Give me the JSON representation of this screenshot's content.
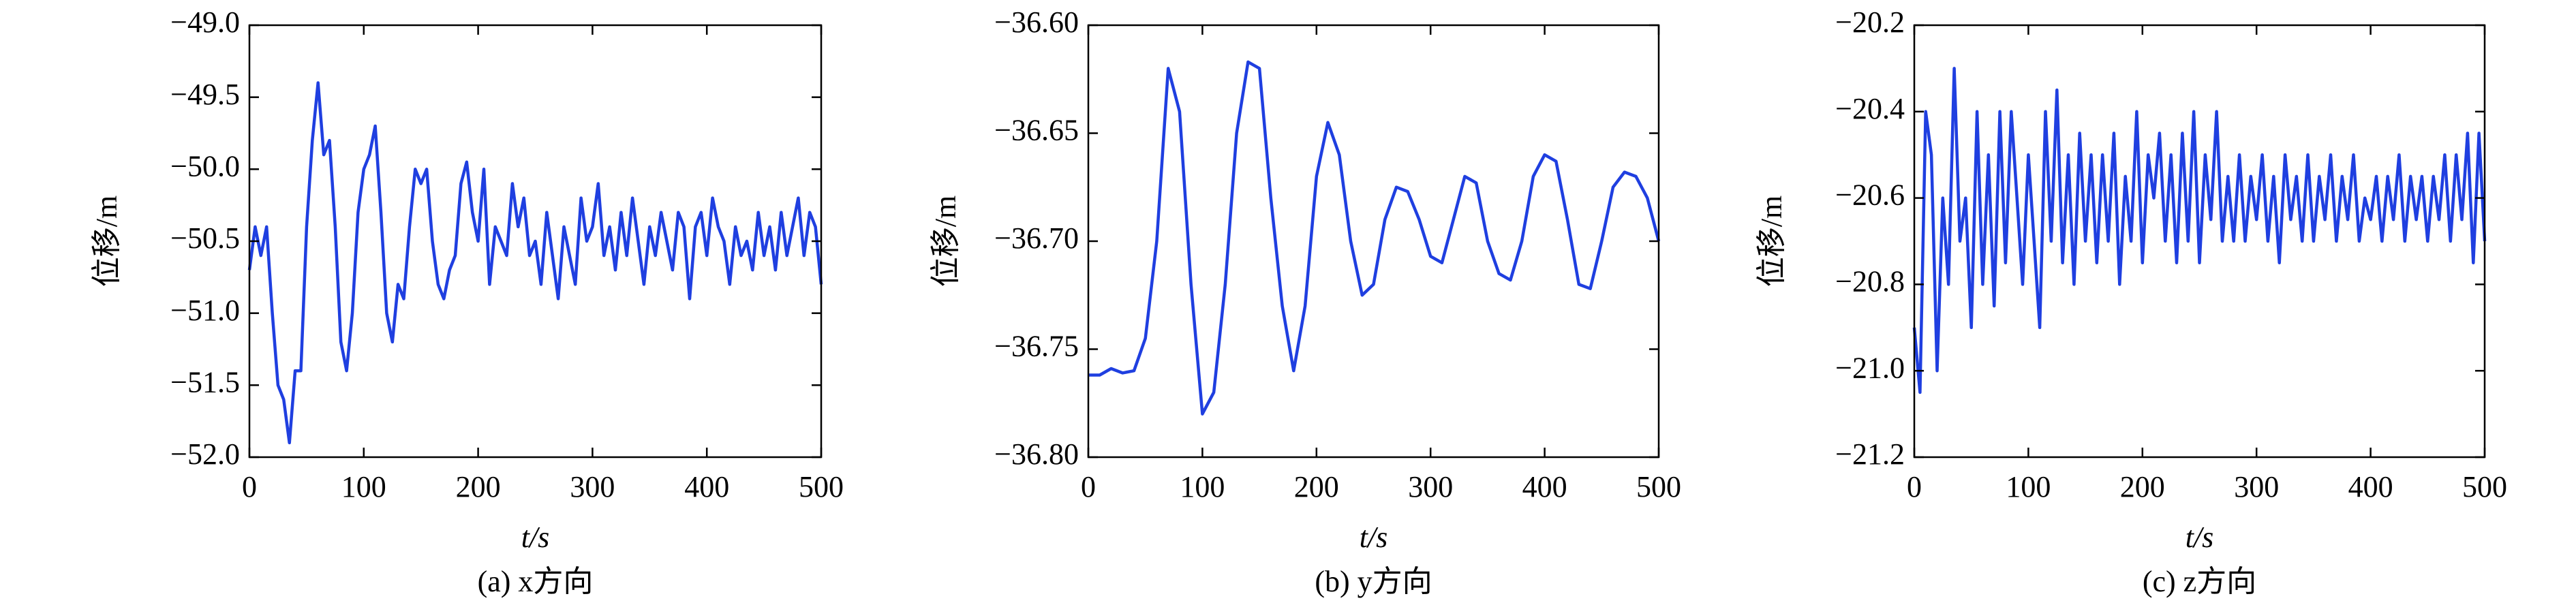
{
  "chart_data": [
    {
      "type": "line",
      "caption": "(a) x方向",
      "xlabel": "t/s",
      "ylabel": "位移/m",
      "color": "#1f3fe0",
      "xlim": [
        0,
        500
      ],
      "xticks": [
        0,
        100,
        200,
        300,
        400,
        500
      ],
      "ylim": [
        -52,
        -49
      ],
      "yticks": [
        {
          "value": -52,
          "label": "−52.0"
        },
        {
          "value": -51.5,
          "label": "−51.5"
        },
        {
          "value": -51,
          "label": "−51.0"
        },
        {
          "value": -50.5,
          "label": "−50.5"
        },
        {
          "value": -50,
          "label": "−50.0"
        },
        {
          "value": -49.5,
          "label": "−49.5"
        },
        {
          "value": -49,
          "label": "−49.0"
        }
      ],
      "x": [
        0,
        5,
        10,
        15,
        20,
        25,
        30,
        35,
        40,
        45,
        50,
        55,
        60,
        65,
        70,
        75,
        80,
        85,
        90,
        95,
        100,
        105,
        110,
        115,
        120,
        125,
        130,
        135,
        140,
        145,
        150,
        155,
        160,
        165,
        170,
        175,
        180,
        185,
        190,
        195,
        200,
        205,
        210,
        215,
        220,
        225,
        230,
        235,
        240,
        245,
        250,
        255,
        260,
        265,
        270,
        275,
        280,
        285,
        290,
        295,
        300,
        305,
        310,
        315,
        320,
        325,
        330,
        335,
        340,
        345,
        350,
        355,
        360,
        365,
        370,
        375,
        380,
        385,
        390,
        395,
        400,
        405,
        410,
        415,
        420,
        425,
        430,
        435,
        440,
        445,
        450,
        455,
        460,
        465,
        470,
        475,
        480,
        485,
        490,
        495,
        500
      ],
      "values": [
        -50.7,
        -50.4,
        -50.6,
        -50.4,
        -51.0,
        -51.5,
        -51.6,
        -51.9,
        -51.4,
        -51.4,
        -50.4,
        -49.8,
        -49.4,
        -49.9,
        -49.8,
        -50.4,
        -51.2,
        -51.4,
        -51.0,
        -50.3,
        -50.0,
        -49.9,
        -49.7,
        -50.3,
        -51.0,
        -51.2,
        -50.8,
        -50.9,
        -50.4,
        -50.0,
        -50.1,
        -50.0,
        -50.5,
        -50.8,
        -50.9,
        -50.7,
        -50.6,
        -50.1,
        -49.95,
        -50.3,
        -50.5,
        -50.0,
        -50.8,
        -50.4,
        -50.5,
        -50.6,
        -50.1,
        -50.4,
        -50.2,
        -50.6,
        -50.5,
        -50.8,
        -50.3,
        -50.6,
        -50.9,
        -50.4,
        -50.6,
        -50.8,
        -50.2,
        -50.5,
        -50.4,
        -50.1,
        -50.6,
        -50.4,
        -50.7,
        -50.3,
        -50.6,
        -50.2,
        -50.5,
        -50.8,
        -50.4,
        -50.6,
        -50.3,
        -50.5,
        -50.7,
        -50.3,
        -50.4,
        -50.9,
        -50.4,
        -50.3,
        -50.6,
        -50.2,
        -50.4,
        -50.5,
        -50.8,
        -50.4,
        -50.6,
        -50.5,
        -50.7,
        -50.3,
        -50.6,
        -50.4,
        -50.7,
        -50.3,
        -50.6,
        -50.4,
        -50.2,
        -50.6,
        -50.3,
        -50.4,
        -50.8
      ]
    },
    {
      "type": "line",
      "caption": "(b) y方向",
      "xlabel": "t/s",
      "ylabel": "位移/m",
      "color": "#1f3fe0",
      "xlim": [
        0,
        500
      ],
      "xticks": [
        0,
        100,
        200,
        300,
        400,
        500
      ],
      "ylim": [
        -36.8,
        -36.6
      ],
      "yticks": [
        {
          "value": -36.8,
          "label": "−36.80"
        },
        {
          "value": -36.75,
          "label": "−36.75"
        },
        {
          "value": -36.7,
          "label": "−36.70"
        },
        {
          "value": -36.65,
          "label": "−36.65"
        },
        {
          "value": -36.6,
          "label": "−36.60"
        }
      ],
      "x": [
        0,
        10,
        20,
        30,
        40,
        50,
        60,
        70,
        80,
        90,
        100,
        110,
        120,
        130,
        140,
        150,
        160,
        170,
        180,
        190,
        200,
        210,
        220,
        230,
        240,
        250,
        260,
        270,
        280,
        290,
        300,
        310,
        320,
        330,
        340,
        350,
        360,
        370,
        380,
        390,
        400,
        410,
        420,
        430,
        440,
        450,
        460,
        470,
        480,
        490,
        500
      ],
      "values": [
        -36.762,
        -36.762,
        -36.759,
        -36.761,
        -36.76,
        -36.745,
        -36.7,
        -36.62,
        -36.64,
        -36.72,
        -36.78,
        -36.77,
        -36.72,
        -36.65,
        -36.617,
        -36.62,
        -36.68,
        -36.73,
        -36.76,
        -36.73,
        -36.67,
        -36.645,
        -36.66,
        -36.7,
        -36.725,
        -36.72,
        -36.69,
        -36.675,
        -36.677,
        -36.69,
        -36.707,
        -36.71,
        -36.69,
        -36.67,
        -36.673,
        -36.7,
        -36.715,
        -36.718,
        -36.7,
        -36.67,
        -36.66,
        -36.663,
        -36.69,
        -36.72,
        -36.722,
        -36.7,
        -36.675,
        -36.668,
        -36.67,
        -36.68,
        -36.7
      ]
    },
    {
      "type": "line",
      "caption": "(c) z方向",
      "xlabel": "t/s",
      "ylabel": "位移/m",
      "color": "#1f3fe0",
      "xlim": [
        0,
        500
      ],
      "xticks": [
        0,
        100,
        200,
        300,
        400,
        500
      ],
      "ylim": [
        -21.2,
        -20.2
      ],
      "yticks": [
        {
          "value": -21.2,
          "label": "−21.2"
        },
        {
          "value": -21,
          "label": "−21.0"
        },
        {
          "value": -20.8,
          "label": "−20.8"
        },
        {
          "value": -20.6,
          "label": "−20.6"
        },
        {
          "value": -20.4,
          "label": "−20.4"
        },
        {
          "value": -20.2,
          "label": "−20.2"
        }
      ],
      "x": [
        0,
        5,
        10,
        15,
        20,
        25,
        30,
        35,
        40,
        45,
        50,
        55,
        60,
        65,
        70,
        75,
        80,
        85,
        90,
        95,
        100,
        105,
        110,
        115,
        120,
        125,
        130,
        135,
        140,
        145,
        150,
        155,
        160,
        165,
        170,
        175,
        180,
        185,
        190,
        195,
        200,
        205,
        210,
        215,
        220,
        225,
        230,
        235,
        240,
        245,
        250,
        255,
        260,
        265,
        270,
        275,
        280,
        285,
        290,
        295,
        300,
        305,
        310,
        315,
        320,
        325,
        330,
        335,
        340,
        345,
        350,
        355,
        360,
        365,
        370,
        375,
        380,
        385,
        390,
        395,
        400,
        405,
        410,
        415,
        420,
        425,
        430,
        435,
        440,
        445,
        450,
        455,
        460,
        465,
        470,
        475,
        480,
        485,
        490,
        495,
        500
      ],
      "values": [
        -20.9,
        -21.05,
        -20.4,
        -20.5,
        -21.0,
        -20.6,
        -20.8,
        -20.3,
        -20.7,
        -20.6,
        -20.9,
        -20.4,
        -20.8,
        -20.5,
        -20.85,
        -20.4,
        -20.75,
        -20.4,
        -20.6,
        -20.8,
        -20.5,
        -20.7,
        -20.9,
        -20.4,
        -20.7,
        -20.35,
        -20.75,
        -20.5,
        -20.8,
        -20.45,
        -20.7,
        -20.5,
        -20.75,
        -20.5,
        -20.7,
        -20.45,
        -20.8,
        -20.55,
        -20.7,
        -20.4,
        -20.75,
        -20.5,
        -20.6,
        -20.45,
        -20.7,
        -20.5,
        -20.75,
        -20.45,
        -20.7,
        -20.4,
        -20.75,
        -20.5,
        -20.65,
        -20.4,
        -20.7,
        -20.55,
        -20.7,
        -20.5,
        -20.7,
        -20.55,
        -20.65,
        -20.5,
        -20.7,
        -20.55,
        -20.75,
        -20.5,
        -20.65,
        -20.55,
        -20.7,
        -20.5,
        -20.7,
        -20.55,
        -20.65,
        -20.5,
        -20.7,
        -20.55,
        -20.65,
        -20.5,
        -20.7,
        -20.6,
        -20.65,
        -20.55,
        -20.7,
        -20.55,
        -20.65,
        -20.5,
        -20.7,
        -20.55,
        -20.65,
        -20.55,
        -20.7,
        -20.55,
        -20.65,
        -20.5,
        -20.7,
        -20.5,
        -20.65,
        -20.45,
        -20.75,
        -20.45,
        -20.7
      ]
    }
  ]
}
